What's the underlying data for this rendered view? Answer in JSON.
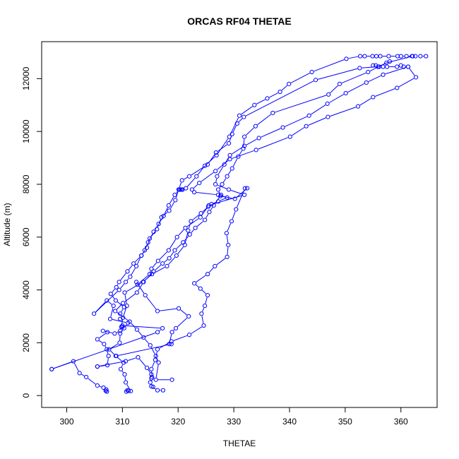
{
  "chart_data": {
    "type": "line",
    "title": "ORCAS RF04 THETAE",
    "xlabel": "THETAE",
    "ylabel": "Altitude (m)",
    "xlim": [
      295.5,
      366.5
    ],
    "ylim": [
      -450,
      13400
    ],
    "x_ticks": [
      300,
      310,
      320,
      330,
      340,
      350,
      360
    ],
    "y_ticks": [
      0,
      2000,
      4000,
      6000,
      8000,
      10000,
      12000
    ],
    "grid": false,
    "legend": "none",
    "marker": "open-circle",
    "line_style": "solid",
    "color": "#0000ff",
    "series": [
      {
        "values": [
          [
            307.2,
            150
          ],
          [
            307.0,
            180
          ],
          [
            307.1,
            230
          ],
          [
            306.6,
            300
          ],
          [
            305.5,
            380
          ],
          [
            303.5,
            700
          ],
          [
            302.3,
            850
          ],
          [
            301.2,
            1300
          ],
          [
            297.3,
            1000
          ]
        ]
      },
      {
        "values": [
          [
            297.3,
            1000
          ],
          [
            316.3,
            2400
          ],
          [
            317.2,
            2550
          ],
          [
            310.0,
            2650
          ]
        ]
      },
      {
        "values": [
          [
            310.0,
            2600
          ],
          [
            309.6,
            2450
          ],
          [
            308.6,
            2350
          ],
          [
            306.5,
            2450
          ],
          [
            307.3,
            2400
          ],
          [
            305.5,
            2130
          ],
          [
            306.7,
            1950
          ],
          [
            307.2,
            1750
          ],
          [
            307.5,
            1500
          ],
          [
            307.3,
            1150
          ],
          [
            305.5,
            1100
          ]
        ]
      },
      {
        "values": [
          [
            305.5,
            1100
          ],
          [
            310.6,
            1300
          ],
          [
            312.8,
            1450
          ],
          [
            314.4,
            1050
          ],
          [
            315.2,
            800
          ],
          [
            315.2,
            650
          ],
          [
            315.0,
            500
          ],
          [
            315.5,
            330
          ],
          [
            315.2,
            350
          ],
          [
            316.3,
            200
          ],
          [
            317.3,
            200
          ]
        ]
      },
      {
        "values": [
          [
            310.7,
            150
          ],
          [
            310.9,
            200
          ],
          [
            311.1,
            180
          ],
          [
            311.5,
            170
          ],
          [
            310.6,
            500
          ],
          [
            310.4,
            800
          ],
          [
            309.7,
            1000
          ],
          [
            310.2,
            1250
          ],
          [
            308.8,
            1500
          ],
          [
            307.6,
            1750
          ],
          [
            309.5,
            2000
          ],
          [
            309.6,
            2350
          ],
          [
            310.3,
            2550
          ],
          [
            311.0,
            2750
          ],
          [
            307.8,
            2900
          ],
          [
            308.4,
            3400
          ],
          [
            307.2,
            3600
          ],
          [
            304.9,
            3100
          ],
          [
            309.4,
            4000
          ],
          [
            310.6,
            4300
          ],
          [
            311.4,
            4500
          ],
          [
            312.5,
            4900
          ],
          [
            313.4,
            5300
          ],
          [
            314.0,
            5500
          ],
          [
            314.6,
            5800
          ],
          [
            315.6,
            6200
          ],
          [
            316.5,
            6500
          ],
          [
            317.4,
            6800
          ],
          [
            318.3,
            7200
          ],
          [
            319.4,
            7600
          ],
          [
            320.2,
            7800
          ],
          [
            320.4,
            7800
          ],
          [
            320.6,
            7800
          ],
          [
            320.8,
            7800
          ],
          [
            321.4,
            7850
          ],
          [
            323.3,
            8300
          ],
          [
            324.8,
            8700
          ],
          [
            326.9,
            9100
          ],
          [
            329.2,
            9800
          ],
          [
            331.0,
            10600
          ],
          [
            333.7,
            11000
          ],
          [
            336.0,
            11250
          ],
          [
            338.3,
            11500
          ],
          [
            339.9,
            11800
          ],
          [
            344.0,
            12250
          ],
          [
            350.2,
            12750
          ],
          [
            352.7,
            12850
          ],
          [
            353.5,
            12850
          ],
          [
            354.9,
            12850
          ],
          [
            355.6,
            12850
          ],
          [
            356.3,
            12850
          ],
          [
            357.8,
            12850
          ],
          [
            359.4,
            12850
          ],
          [
            360.0,
            12850
          ],
          [
            361.0,
            12850
          ],
          [
            362.0,
            12850
          ],
          [
            362.6,
            12850
          ],
          [
            363.5,
            12850
          ],
          [
            364.5,
            12850
          ]
        ]
      },
      {
        "values": [
          [
            355.0,
            12500
          ],
          [
            355.5,
            12500
          ],
          [
            356.1,
            12450
          ],
          [
            356.8,
            12450
          ],
          [
            357.5,
            12450
          ],
          [
            359.3,
            12450
          ],
          [
            360.0,
            12500
          ],
          [
            360.5,
            12450
          ],
          [
            361.3,
            12450
          ],
          [
            362.7,
            12050
          ],
          [
            359.3,
            11650
          ],
          [
            355.0,
            11300
          ],
          [
            352.3,
            10950
          ],
          [
            346.9,
            10550
          ],
          [
            343.0,
            10200
          ],
          [
            340.1,
            9800
          ],
          [
            334.0,
            9300
          ],
          [
            329.3,
            8950
          ],
          [
            326.7,
            8500
          ],
          [
            323.8,
            8050
          ],
          [
            322.5,
            7800
          ],
          [
            322.9,
            7700
          ],
          [
            327.2,
            7600
          ],
          [
            328.8,
            7500
          ],
          [
            327.2,
            7350
          ],
          [
            326.0,
            7250
          ],
          [
            325.4,
            7150
          ],
          [
            324.1,
            6900
          ],
          [
            322.3,
            6600
          ],
          [
            321.8,
            6250
          ],
          [
            321.2,
            5700
          ],
          [
            319.7,
            5300
          ],
          [
            318.0,
            4900
          ],
          [
            315.3,
            4600
          ],
          [
            313.7,
            4300
          ],
          [
            310.4,
            3900
          ],
          [
            310.8,
            3400
          ],
          [
            310.1,
            2950
          ],
          [
            309.8,
            2600
          ]
        ]
      },
      {
        "values": [
          [
            361.3,
            12450
          ],
          [
            356.8,
            12150
          ],
          [
            353.8,
            11850
          ],
          [
            350.1,
            11450
          ],
          [
            346.8,
            11050
          ],
          [
            343.5,
            10600
          ],
          [
            338.8,
            10150
          ],
          [
            334.5,
            9750
          ],
          [
            331.9,
            9450
          ],
          [
            329.3,
            9100
          ],
          [
            328.3,
            8750
          ],
          [
            327.0,
            8300
          ],
          [
            326.7,
            8000
          ],
          [
            329.1,
            7800
          ],
          [
            331.9,
            7600
          ],
          [
            325.5,
            7200
          ],
          [
            324.0,
            6750
          ],
          [
            321.3,
            6350
          ],
          [
            319.8,
            6000
          ],
          [
            318.3,
            5500
          ],
          [
            316.4,
            5100
          ],
          [
            315.2,
            4800
          ],
          [
            314.9,
            4600
          ],
          [
            312.7,
            4200
          ],
          [
            312.5,
            4300
          ],
          [
            314.1,
            3800
          ],
          [
            316.3,
            3200
          ],
          [
            320.1,
            3300
          ],
          [
            321.9,
            3000
          ],
          [
            319.6,
            2550
          ],
          [
            318.9,
            2400
          ],
          [
            318.4,
            1950
          ],
          [
            318.8,
            1950
          ],
          [
            308.9,
            1500
          ]
        ]
      },
      {
        "values": [
          [
            358.0,
            12650
          ],
          [
            355.9,
            12450
          ],
          [
            352.6,
            12400
          ],
          [
            344.7,
            11950
          ],
          [
            331.8,
            10550
          ],
          [
            330.6,
            10300
          ],
          [
            329.7,
            9900
          ],
          [
            329.1,
            9550
          ],
          [
            326.8,
            9200
          ],
          [
            325.3,
            8750
          ],
          [
            322.0,
            8300
          ],
          [
            320.7,
            8150
          ],
          [
            320.1,
            7800
          ],
          [
            319.5,
            7400
          ],
          [
            318.4,
            7000
          ],
          [
            317.0,
            6750
          ],
          [
            316.2,
            6300
          ],
          [
            314.9,
            5950
          ],
          [
            314.4,
            5600
          ],
          [
            313.4,
            5300
          ],
          [
            312.0,
            5000
          ],
          [
            310.9,
            4700
          ],
          [
            309.4,
            4300
          ],
          [
            308.9,
            4100
          ],
          [
            307.9,
            3850
          ],
          [
            308.8,
            3600
          ],
          [
            310.3,
            3350
          ],
          [
            309.6,
            3100
          ],
          [
            309.6,
            2900
          ]
        ]
      },
      {
        "values": [
          [
            362.1,
            12850
          ],
          [
            357.4,
            12600
          ],
          [
            354.1,
            12250
          ],
          [
            349.0,
            11800
          ],
          [
            347.0,
            11400
          ],
          [
            337.0,
            10700
          ],
          [
            333.9,
            10200
          ],
          [
            331.9,
            9800
          ],
          [
            331.7,
            9350
          ],
          [
            330.8,
            9050
          ],
          [
            329.7,
            8600
          ],
          [
            328.8,
            8300
          ],
          [
            327.9,
            8000
          ],
          [
            327.2,
            7800
          ],
          [
            327.6,
            7550
          ],
          [
            330.2,
            7450
          ],
          [
            332.4,
            7850
          ],
          [
            332.0,
            7850
          ],
          [
            330.4,
            7050
          ],
          [
            329.6,
            6600
          ],
          [
            328.7,
            6150
          ],
          [
            329.0,
            5700
          ],
          [
            328.8,
            5250
          ],
          [
            326.6,
            4900
          ],
          [
            325.3,
            4600
          ],
          [
            322.9,
            4250
          ],
          [
            324.0,
            4050
          ],
          [
            325.3,
            3800
          ],
          [
            324.8,
            3400
          ],
          [
            324.2,
            3100
          ],
          [
            324.6,
            2650
          ],
          [
            322.0,
            2300
          ],
          [
            318.8,
            2050
          ],
          [
            316.3,
            1750
          ],
          [
            315.9,
            1350
          ],
          [
            315.2,
            1000
          ],
          [
            315.3,
            700
          ]
        ]
      },
      {
        "values": [
          [
            318.9,
            600
          ],
          [
            316.0,
            600
          ],
          [
            316.5,
            1250
          ],
          [
            316.0,
            1500
          ],
          [
            315.0,
            1900
          ],
          [
            313.8,
            2200
          ],
          [
            312.6,
            2500
          ],
          [
            311.3,
            2800
          ],
          [
            308.7,
            3200
          ],
          [
            310.1,
            3500
          ],
          [
            312.6,
            3900
          ],
          [
            313.8,
            4300
          ],
          [
            315.6,
            4700
          ],
          [
            317.2,
            5000
          ],
          [
            318.4,
            5200
          ],
          [
            319.4,
            5500
          ],
          [
            320.9,
            5800
          ],
          [
            322.1,
            6100
          ],
          [
            323.1,
            6350
          ],
          [
            324.8,
            6650
          ],
          [
            325.6,
            6950
          ],
          [
            326.4,
            7200
          ],
          [
            327.7,
            7600
          ]
        ]
      }
    ]
  }
}
